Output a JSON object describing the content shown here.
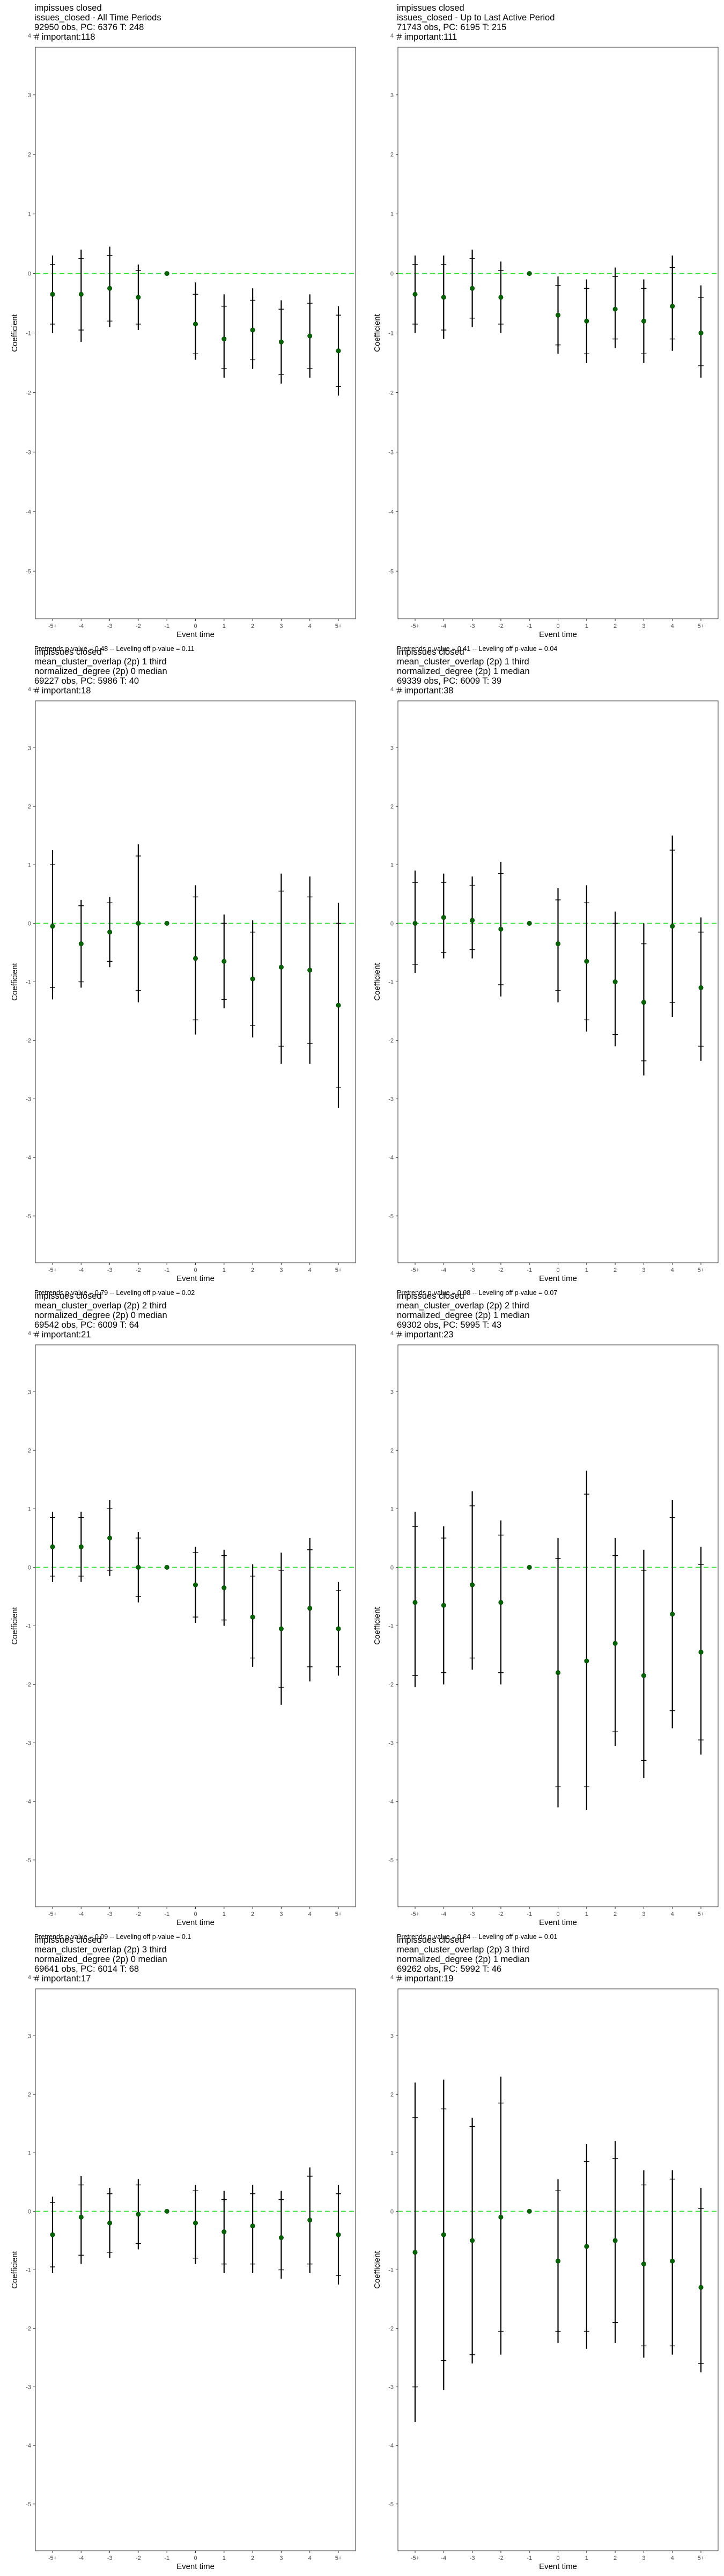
{
  "chart_data": [
    {
      "type": "scatter",
      "title_lines": [
        " impissues closed",
        "issues_closed - All Time Periods",
        "92950 obs, PC: 6376 T: 248",
        "# important:118"
      ],
      "categories": [
        "-5+",
        "-4",
        "-3",
        "-2",
        "-1",
        "0",
        "1",
        "2",
        "3",
        "4",
        "5+"
      ],
      "xlabel": "Event time",
      "ylabel": "Coefficient",
      "ylim": [
        -5.8,
        3.8
      ],
      "yticks": [
        -5,
        -4,
        -3,
        -2,
        -1,
        0,
        1,
        2,
        3,
        4
      ],
      "ref_line": 0,
      "series": [
        {
          "estimate": [
            -0.35,
            -0.35,
            -0.25,
            -0.4,
            0,
            -0.85,
            -1.1,
            -0.95,
            -1.15,
            -1.05,
            -1.3
          ],
          "ci95_low": [
            -1.0,
            -1.15,
            -0.9,
            -0.95,
            0,
            -1.45,
            -1.75,
            -1.6,
            -1.85,
            -1.75,
            -2.05
          ],
          "ci95_high": [
            0.3,
            0.4,
            0.45,
            0.15,
            0,
            -0.15,
            -0.35,
            -0.25,
            -0.45,
            -0.35,
            -0.55
          ],
          "ci90_low": [
            -0.85,
            -0.95,
            -0.8,
            -0.85,
            0,
            -1.35,
            -1.6,
            -1.45,
            -1.7,
            -1.6,
            -1.9
          ],
          "ci90_high": [
            0.15,
            0.25,
            0.3,
            0.05,
            0,
            -0.35,
            -0.55,
            -0.45,
            -0.6,
            -0.5,
            -0.7
          ]
        }
      ],
      "footer": "Pretrends p-value = 0.48 -- Leveling off p-value = 0.11"
    },
    {
      "type": "scatter",
      "title_lines": [
        " impissues closed",
        "issues_closed - Up to Last Active Period",
        "71743 obs, PC: 6195 T: 215",
        "# important:111"
      ],
      "categories": [
        "-5+",
        "-4",
        "-3",
        "-2",
        "-1",
        "0",
        "1",
        "2",
        "3",
        "4",
        "5+"
      ],
      "xlabel": "Event time",
      "ylabel": "Coefficient",
      "ylim": [
        -5.8,
        3.8
      ],
      "yticks": [
        -5,
        -4,
        -3,
        -2,
        -1,
        0,
        1,
        2,
        3,
        4
      ],
      "ref_line": 0,
      "series": [
        {
          "estimate": [
            -0.35,
            -0.4,
            -0.25,
            -0.4,
            0,
            -0.7,
            -0.8,
            -0.6,
            -0.8,
            -0.55,
            -1.0
          ],
          "ci95_low": [
            -1.0,
            -1.1,
            -0.9,
            -1.0,
            0,
            -1.35,
            -1.5,
            -1.25,
            -1.5,
            -1.3,
            -1.75
          ],
          "ci95_high": [
            0.3,
            0.3,
            0.4,
            0.2,
            0,
            -0.05,
            -0.1,
            0.1,
            -0.1,
            0.3,
            -0.2
          ],
          "ci90_low": [
            -0.85,
            -0.95,
            -0.75,
            -0.85,
            0,
            -1.2,
            -1.35,
            -1.1,
            -1.35,
            -1.1,
            -1.55
          ],
          "ci90_high": [
            0.15,
            0.15,
            0.25,
            0.05,
            0,
            -0.2,
            -0.25,
            -0.05,
            -0.25,
            0.1,
            -0.4
          ]
        }
      ],
      "footer": "Pretrends p-value = 0.41 -- Leveling off p-value = 0.04"
    },
    {
      "type": "scatter",
      "title_lines": [
        " impissues closed",
        "mean_cluster_overlap (2p) 1 third",
        "normalized_degree (2p) 0 median",
        "69227 obs, PC: 5986 T: 40",
        "# important:18"
      ],
      "categories": [
        "-5+",
        "-4",
        "-3",
        "-2",
        "-1",
        "0",
        "1",
        "2",
        "3",
        "4",
        "5+"
      ],
      "xlabel": "Event time",
      "ylabel": "Coefficient",
      "ylim": [
        -5.8,
        3.8
      ],
      "yticks": [
        -5,
        -4,
        -3,
        -2,
        -1,
        0,
        1,
        2,
        3,
        4
      ],
      "ref_line": 0,
      "series": [
        {
          "estimate": [
            -0.05,
            -0.35,
            -0.15,
            0.0,
            0,
            -0.6,
            -0.65,
            -0.95,
            -0.75,
            -0.8,
            -1.4
          ],
          "ci95_low": [
            -1.3,
            -1.1,
            -0.75,
            -1.35,
            0,
            -1.9,
            -1.45,
            -1.95,
            -2.4,
            -2.4,
            -3.15
          ],
          "ci95_high": [
            1.25,
            0.4,
            0.45,
            1.35,
            0,
            0.65,
            0.15,
            0.05,
            0.85,
            0.8,
            0.35
          ],
          "ci90_low": [
            -1.1,
            -1.0,
            -0.65,
            -1.15,
            0,
            -1.65,
            -1.3,
            -1.75,
            -2.1,
            -2.05,
            -2.8
          ],
          "ci90_high": [
            1.0,
            0.3,
            0.35,
            1.15,
            0,
            0.45,
            0.0,
            -0.15,
            0.55,
            0.45,
            0.0
          ]
        }
      ],
      "footer": "Pretrends p-value = 0.79 -- Leveling off p-value = 0.02"
    },
    {
      "type": "scatter",
      "title_lines": [
        " impissues closed",
        "mean_cluster_overlap (2p) 1 third",
        "normalized_degree (2p) 1 median",
        "69339 obs, PC: 6009 T: 39",
        "# important:38"
      ],
      "categories": [
        "-5+",
        "-4",
        "-3",
        "-2",
        "-1",
        "0",
        "1",
        "2",
        "3",
        "4",
        "5+"
      ],
      "xlabel": "Event time",
      "ylabel": "Coefficient",
      "ylim": [
        -5.8,
        3.8
      ],
      "yticks": [
        -5,
        -4,
        -3,
        -2,
        -1,
        0,
        1,
        2,
        3,
        4
      ],
      "ref_line": 0,
      "series": [
        {
          "estimate": [
            0.0,
            0.1,
            0.05,
            -0.1,
            0,
            -0.35,
            -0.65,
            -1.0,
            -1.35,
            -0.05,
            -1.1
          ],
          "ci95_low": [
            -0.85,
            -0.6,
            -0.6,
            -1.25,
            0,
            -1.35,
            -1.85,
            -2.1,
            -2.6,
            -1.6,
            -2.35
          ],
          "ci95_high": [
            0.9,
            0.85,
            0.8,
            1.05,
            0,
            0.6,
            0.65,
            0.2,
            0.0,
            1.5,
            0.1
          ],
          "ci90_low": [
            -0.7,
            -0.5,
            -0.45,
            -1.05,
            0,
            -1.15,
            -1.65,
            -1.9,
            -2.35,
            -1.35,
            -2.1
          ],
          "ci90_high": [
            0.7,
            0.7,
            0.65,
            0.85,
            0,
            0.4,
            0.35,
            0.0,
            -0.35,
            1.25,
            -0.15
          ]
        }
      ],
      "footer": "Pretrends p-value = 0.98 -- Leveling off p-value = 0.07"
    },
    {
      "type": "scatter",
      "title_lines": [
        " impissues closed",
        "mean_cluster_overlap (2p) 2 third",
        "normalized_degree (2p) 0 median",
        "69542 obs, PC: 6009 T: 64",
        "# important:21"
      ],
      "categories": [
        "-5+",
        "-4",
        "-3",
        "-2",
        "-1",
        "0",
        "1",
        "2",
        "3",
        "4",
        "5+"
      ],
      "xlabel": "Event time",
      "ylabel": "Coefficient",
      "ylim": [
        -5.8,
        3.8
      ],
      "yticks": [
        -5,
        -4,
        -3,
        -2,
        -1,
        0,
        1,
        2,
        3,
        4
      ],
      "ref_line": 0,
      "series": [
        {
          "estimate": [
            0.35,
            0.35,
            0.5,
            0.0,
            0,
            -0.3,
            -0.35,
            -0.85,
            -1.05,
            -0.7,
            -1.05
          ],
          "ci95_low": [
            -0.25,
            -0.25,
            -0.15,
            -0.6,
            0,
            -0.95,
            -1.0,
            -1.7,
            -2.35,
            -1.95,
            -1.85
          ],
          "ci95_high": [
            0.95,
            0.95,
            1.15,
            0.6,
            0,
            0.35,
            0.3,
            0.05,
            0.25,
            0.5,
            -0.25
          ],
          "ci90_low": [
            -0.15,
            -0.15,
            -0.05,
            -0.5,
            0,
            -0.85,
            -0.9,
            -1.55,
            -2.05,
            -1.7,
            -1.7
          ],
          "ci90_high": [
            0.85,
            0.85,
            1.0,
            0.5,
            0,
            0.25,
            0.2,
            -0.15,
            -0.05,
            0.3,
            -0.4
          ]
        }
      ],
      "footer": "Pretrends p-value = 0.09 -- Leveling off p-value = 0.1"
    },
    {
      "type": "scatter",
      "title_lines": [
        " impissues closed",
        "mean_cluster_overlap (2p) 2 third",
        "normalized_degree (2p) 1 median",
        "69302 obs, PC: 5995 T: 43",
        "# important:23"
      ],
      "categories": [
        "-5+",
        "-4",
        "-3",
        "-2",
        "-1",
        "0",
        "1",
        "2",
        "3",
        "4",
        "5+"
      ],
      "xlabel": "Event time",
      "ylabel": "Coefficient",
      "ylim": [
        -5.8,
        3.8
      ],
      "yticks": [
        -5,
        -4,
        -3,
        -2,
        -1,
        0,
        1,
        2,
        3,
        4
      ],
      "ref_line": 0,
      "series": [
        {
          "estimate": [
            -0.6,
            -0.65,
            -0.3,
            -0.6,
            0,
            -1.8,
            -1.6,
            -1.3,
            -1.85,
            -0.8,
            -1.45
          ],
          "ci95_low": [
            -2.05,
            -2.0,
            -1.75,
            -2.0,
            0,
            -4.1,
            -4.15,
            -3.05,
            -3.6,
            -2.75,
            -3.2
          ],
          "ci95_high": [
            0.95,
            0.7,
            1.3,
            0.8,
            0,
            0.5,
            1.65,
            0.5,
            0.3,
            1.15,
            0.35
          ],
          "ci90_low": [
            -1.85,
            -1.8,
            -1.55,
            -1.8,
            0,
            -3.75,
            -3.75,
            -2.8,
            -3.3,
            -2.45,
            -2.95
          ],
          "ci90_high": [
            0.7,
            0.5,
            1.05,
            0.55,
            0,
            0.15,
            1.25,
            0.2,
            -0.05,
            0.85,
            0.05
          ]
        }
      ],
      "footer": "Pretrends p-value = 0.84 -- Leveling off p-value = 0.01"
    },
    {
      "type": "scatter",
      "title_lines": [
        " impissues closed",
        "mean_cluster_overlap (2p) 3 third",
        "normalized_degree (2p) 0 median",
        "69641 obs, PC: 6014 T: 68",
        "# important:17"
      ],
      "categories": [
        "-5+",
        "-4",
        "-3",
        "-2",
        "-1",
        "0",
        "1",
        "2",
        "3",
        "4",
        "5+"
      ],
      "xlabel": "Event time",
      "ylabel": "Coefficient",
      "ylim": [
        -5.8,
        3.8
      ],
      "yticks": [
        -5,
        -4,
        -3,
        -2,
        -1,
        0,
        1,
        2,
        3,
        4
      ],
      "ref_line": 0,
      "series": [
        {
          "estimate": [
            -0.4,
            -0.1,
            -0.2,
            -0.05,
            0,
            -0.2,
            -0.35,
            -0.25,
            -0.45,
            -0.15,
            -0.4
          ],
          "ci95_low": [
            -1.05,
            -0.9,
            -0.8,
            -0.65,
            0,
            -0.9,
            -1.05,
            -1.05,
            -1.15,
            -1.05,
            -1.25
          ],
          "ci95_high": [
            0.25,
            0.6,
            0.4,
            0.55,
            0,
            0.45,
            0.35,
            0.45,
            0.35,
            0.75,
            0.45
          ],
          "ci90_low": [
            -0.95,
            -0.75,
            -0.7,
            -0.55,
            0,
            -0.8,
            -0.9,
            -0.9,
            -1.0,
            -0.9,
            -1.1
          ],
          "ci90_high": [
            0.15,
            0.45,
            0.3,
            0.45,
            0,
            0.35,
            0.2,
            0.3,
            0.2,
            0.6,
            0.3
          ]
        }
      ],
      "footer": "Pretrends p-value = 0.51 -- Leveling off p-value = 0.29"
    },
    {
      "type": "scatter",
      "title_lines": [
        " impissues closed",
        "mean_cluster_overlap (2p) 3 third",
        "normalized_degree (2p) 1 median",
        "69262 obs, PC: 5992 T: 46",
        "# important:19"
      ],
      "categories": [
        "-5+",
        "-4",
        "-3",
        "-2",
        "-1",
        "0",
        "1",
        "2",
        "3",
        "4",
        "5+"
      ],
      "xlabel": "Event time",
      "ylabel": "Coefficient",
      "ylim": [
        -5.8,
        3.8
      ],
      "yticks": [
        -5,
        -4,
        -3,
        -2,
        -1,
        0,
        1,
        2,
        3,
        4
      ],
      "ref_line": 0,
      "series": [
        {
          "estimate": [
            -0.7,
            -0.4,
            -0.5,
            -0.1,
            0,
            -0.85,
            -0.6,
            -0.5,
            -0.9,
            -0.85,
            -1.3
          ],
          "ci95_low": [
            -3.6,
            -3.05,
            -2.6,
            -2.45,
            0,
            -2.25,
            -2.35,
            -2.25,
            -2.5,
            -2.45,
            -2.75
          ],
          "ci95_high": [
            2.2,
            2.25,
            1.6,
            2.3,
            0,
            0.55,
            1.15,
            1.2,
            0.7,
            0.7,
            0.4
          ],
          "ci90_low": [
            -3.0,
            -2.55,
            -2.45,
            -2.05,
            0,
            -2.05,
            -2.05,
            -1.9,
            -2.3,
            -2.3,
            -2.6
          ],
          "ci90_high": [
            1.6,
            1.75,
            1.45,
            1.85,
            0,
            0.35,
            0.85,
            0.9,
            0.45,
            0.55,
            0.05
          ]
        }
      ],
      "footer": "Pretrends p-value = 0.72 -- Leveling off p-value = 0.28"
    }
  ]
}
